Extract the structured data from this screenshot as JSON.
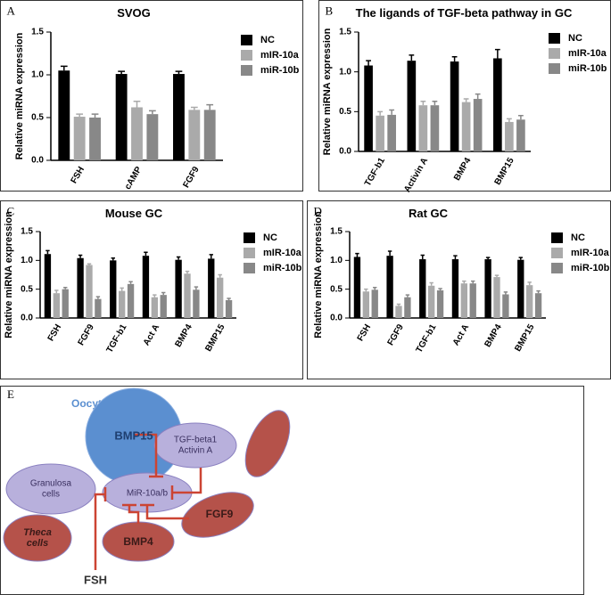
{
  "chart_data": [
    {
      "type": "bar",
      "panel": "A",
      "title": "SVOG",
      "y_label": "Relative miRNA expression",
      "categories": [
        "FSH",
        "cAMP",
        "FGF9"
      ],
      "series": [
        {
          "name": "NC",
          "color": "#000000",
          "values": [
            1.05,
            1.01,
            1.01
          ],
          "errors": [
            0.05,
            0.03,
            0.03
          ]
        },
        {
          "name": "mIR-10a",
          "color": "#aaaaaa",
          "values": [
            0.51,
            0.62,
            0.59
          ],
          "errors": [
            0.03,
            0.07,
            0.03
          ]
        },
        {
          "name": "miR-10b",
          "color": "#888888",
          "values": [
            0.5,
            0.54,
            0.59
          ],
          "errors": [
            0.04,
            0.04,
            0.06
          ]
        }
      ],
      "ylim": [
        0,
        1.5
      ],
      "yticks": [
        {
          "value": 0,
          "label": "0.0"
        },
        0.5,
        {
          "value": 1,
          "label": "1.0"
        },
        1.5
      ]
    },
    {
      "type": "bar",
      "panel": "B",
      "title": "The ligands of TGF-beta pathway in GC",
      "y_label": "Relative miRNA expression",
      "categories": [
        "TGF-b1",
        "Activin A",
        "BMP4",
        "BMP15"
      ],
      "series": [
        {
          "name": "NC",
          "color": "#000000",
          "values": [
            1.08,
            1.14,
            1.13,
            1.17
          ],
          "errors": [
            0.06,
            0.07,
            0.06,
            0.11
          ]
        },
        {
          "name": "mIR-10a",
          "color": "#aaaaaa",
          "values": [
            0.45,
            0.58,
            0.62,
            0.37
          ],
          "errors": [
            0.05,
            0.05,
            0.04,
            0.04
          ]
        },
        {
          "name": "miR-10b",
          "color": "#888888",
          "values": [
            0.46,
            0.58,
            0.66,
            0.4
          ],
          "errors": [
            0.06,
            0.05,
            0.06,
            0.05
          ]
        }
      ],
      "ylim": [
        0,
        1.5
      ],
      "yticks": [
        {
          "value": 0,
          "label": "0.0"
        },
        0.5,
        {
          "value": 1,
          "label": "1.0"
        },
        1.5
      ]
    },
    {
      "type": "bar",
      "panel": "C",
      "title": "Mouse GC",
      "y_label": "Relative miRNA expression",
      "categories": [
        "FSH",
        "FGF9",
        "TGF-b1",
        "Act A",
        "BMP4",
        "BMP15"
      ],
      "series": [
        {
          "name": "NC",
          "color": "#000000",
          "values": [
            1.11,
            1.04,
            1.0,
            1.08,
            1.01,
            1.03
          ],
          "errors": [
            0.06,
            0.05,
            0.04,
            0.06,
            0.05,
            0.07
          ]
        },
        {
          "name": "mIR-10a",
          "color": "#aaaaaa",
          "values": [
            0.43,
            0.92,
            0.47,
            0.36,
            0.77,
            0.7
          ],
          "errors": [
            0.05,
            0.02,
            0.05,
            0.04,
            0.04,
            0.05
          ]
        },
        {
          "name": "miR-10b",
          "color": "#888888",
          "values": [
            0.5,
            0.33,
            0.59,
            0.4,
            0.49,
            0.31
          ],
          "errors": [
            0.03,
            0.04,
            0.04,
            0.04,
            0.05,
            0.03
          ]
        }
      ],
      "ylim": [
        0,
        1.5
      ],
      "yticks": [
        {
          "value": 0,
          "label": "0.0"
        },
        0.5,
        {
          "value": 1,
          "label": "1.0"
        },
        1.5
      ]
    },
    {
      "type": "bar",
      "panel": "D",
      "title": "Rat GC",
      "y_label": "Relative miRNA expression",
      "categories": [
        "FSH",
        "FGF9",
        "TGF-b1",
        "Act A",
        "BMP4",
        "BMP15"
      ],
      "series": [
        {
          "name": "NC",
          "color": "#000000",
          "values": [
            1.06,
            1.08,
            1.02,
            1.02,
            1.02,
            1.01
          ],
          "errors": [
            0.06,
            0.08,
            0.07,
            0.06,
            0.03,
            0.04
          ]
        },
        {
          "name": "mIR-10a",
          "color": "#aaaaaa",
          "values": [
            0.46,
            0.21,
            0.56,
            0.6,
            0.71,
            0.57
          ],
          "errors": [
            0.04,
            0.03,
            0.05,
            0.04,
            0.03,
            0.05
          ]
        },
        {
          "name": "miR-10b",
          "color": "#888888",
          "values": [
            0.49,
            0.36,
            0.48,
            0.6,
            0.41,
            0.43
          ],
          "errors": [
            0.04,
            0.04,
            0.03,
            0.04,
            0.04,
            0.04
          ]
        }
      ],
      "ylim": [
        0,
        1.5
      ],
      "yticks": [
        {
          "value": 0,
          "label": "0.0"
        },
        0.5,
        {
          "value": 1,
          "label": "1.0"
        },
        1.5
      ]
    }
  ],
  "diagram": {
    "panel": "E",
    "label": "Oocyte",
    "nodes": [
      {
        "lines": [
          "BMP15"
        ]
      },
      {
        "lines": [
          "TGF-beta1",
          "Activin A"
        ]
      },
      {
        "lines": [
          "Granulosa",
          "cells"
        ]
      },
      {
        "lines": [
          "MiR-10a/b"
        ]
      },
      {
        "lines": [
          "FGF9"
        ]
      },
      {
        "lines": [
          "Theca",
          "cells"
        ]
      },
      {
        "lines": [
          "BMP4"
        ]
      },
      {
        "lines": [
          "FSH"
        ]
      }
    ]
  }
}
